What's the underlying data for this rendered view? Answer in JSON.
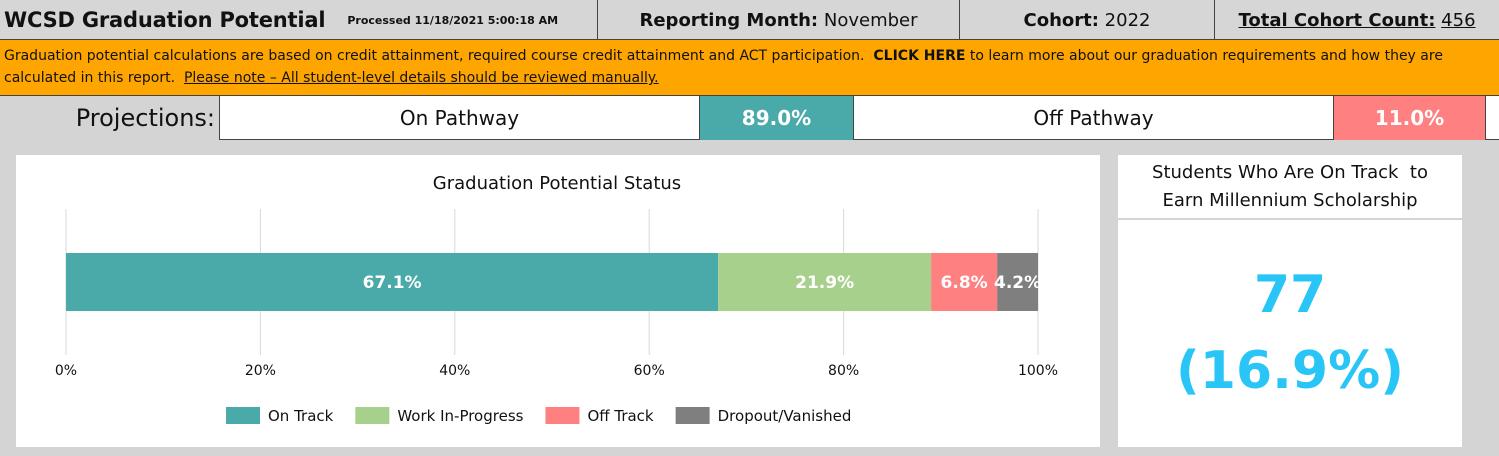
{
  "header": {
    "title": "WCSD Graduation Potential",
    "processed": "Processed 11/18/2021 5:00:18 AM",
    "month_label": "Reporting Month:",
    "month_value": "November",
    "cohort_label": "Cohort:",
    "cohort_value": "2022",
    "total_label": "Total Cohort Count:",
    "total_value": "456"
  },
  "notice": {
    "text_before": "Graduation potential calculations are based on credit attainment, required course credit attainment and ACT participation.",
    "link": "CLICK HERE",
    "text_after": "to learn more about our graduation requirements and how they are calculated in this report.",
    "note": "Please note – All student-level details should be reviewed manually."
  },
  "projections": {
    "label": "Projections:",
    "on_label": "On Pathway",
    "on_value": "89.0%",
    "off_label": "Off Pathway",
    "off_value": "11.0%"
  },
  "colors": {
    "on_track": "#4aa9a9",
    "work_in_progress": "#a8d08d",
    "off_track": "#ff8080",
    "dropout": "#7f7f7f",
    "accent_blue": "#29c5f6",
    "banner": "#ffa500"
  },
  "chart_data": {
    "type": "bar",
    "orientation": "horizontal-stacked",
    "title": "Graduation Potential Status",
    "xlim": [
      0,
      100
    ],
    "x_ticks": [
      "0%",
      "20%",
      "40%",
      "60%",
      "80%",
      "100%"
    ],
    "grid": true,
    "legend_position": "bottom",
    "series": [
      {
        "name": "On Track",
        "value": 67.1,
        "label": "67.1%",
        "color": "#4aa9a9"
      },
      {
        "name": "Work In-Progress",
        "value": 21.9,
        "label": "21.9%",
        "color": "#a8d08d"
      },
      {
        "name": "Off Track",
        "value": 6.8,
        "label": "6.8%",
        "color": "#ff8080"
      },
      {
        "name": "Dropout/Vanished",
        "value": 4.2,
        "label": "4.2%",
        "color": "#7f7f7f"
      }
    ]
  },
  "scholarship": {
    "title_line1": "Students Who Are On Track  to",
    "title_line2": "Earn Millennium Scholarship",
    "count": "77",
    "percent": "(16.9%)"
  }
}
